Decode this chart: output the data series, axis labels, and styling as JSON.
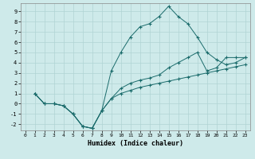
{
  "xlabel": "Humidex (Indice chaleur)",
  "ylabel": "",
  "bg_color": "#ceeaea",
  "grid_color": "#b0d4d4",
  "line_color": "#1a6b6b",
  "xlim": [
    -0.5,
    23.5
  ],
  "ylim": [
    -2.6,
    9.8
  ],
  "xticks": [
    0,
    1,
    2,
    3,
    4,
    5,
    6,
    7,
    8,
    9,
    10,
    11,
    12,
    13,
    14,
    15,
    16,
    17,
    18,
    19,
    20,
    21,
    22,
    23
  ],
  "yticks": [
    -2,
    -1,
    0,
    1,
    2,
    3,
    4,
    5,
    6,
    7,
    8,
    9
  ],
  "line1_x": [
    1,
    2,
    3,
    4,
    5,
    6,
    7,
    8,
    9,
    10,
    11,
    12,
    13,
    14,
    15,
    16,
    17,
    18,
    19,
    20,
    21,
    22,
    23
  ],
  "line1_y": [
    1.0,
    0.0,
    0.0,
    -0.2,
    -1.0,
    -2.2,
    -2.4,
    -0.7,
    0.5,
    1.0,
    1.3,
    1.6,
    1.8,
    2.0,
    2.2,
    2.4,
    2.6,
    2.8,
    3.0,
    3.2,
    3.4,
    3.6,
    3.8
  ],
  "line2_x": [
    1,
    2,
    3,
    4,
    5,
    6,
    7,
    8,
    9,
    10,
    11,
    12,
    13,
    14,
    15,
    16,
    17,
    18,
    19,
    20,
    21,
    22,
    23
  ],
  "line2_y": [
    1.0,
    0.0,
    0.0,
    -0.2,
    -1.0,
    -2.2,
    -2.4,
    -0.7,
    3.2,
    5.0,
    6.5,
    7.5,
    7.8,
    8.5,
    9.5,
    8.5,
    7.8,
    6.5,
    5.0,
    4.3,
    3.8,
    4.0,
    4.5
  ],
  "line3_x": [
    1,
    2,
    3,
    4,
    5,
    6,
    7,
    8,
    9,
    10,
    11,
    12,
    13,
    14,
    15,
    16,
    17,
    18,
    19,
    20,
    21,
    22,
    23
  ],
  "line3_y": [
    1.0,
    0.0,
    0.0,
    -0.2,
    -1.0,
    -2.2,
    -2.4,
    -0.7,
    0.5,
    1.5,
    2.0,
    2.3,
    2.5,
    2.8,
    3.5,
    4.0,
    4.5,
    5.0,
    3.2,
    3.5,
    4.5,
    4.5,
    4.5
  ],
  "figwidth": 3.2,
  "figheight": 2.0,
  "dpi": 100
}
